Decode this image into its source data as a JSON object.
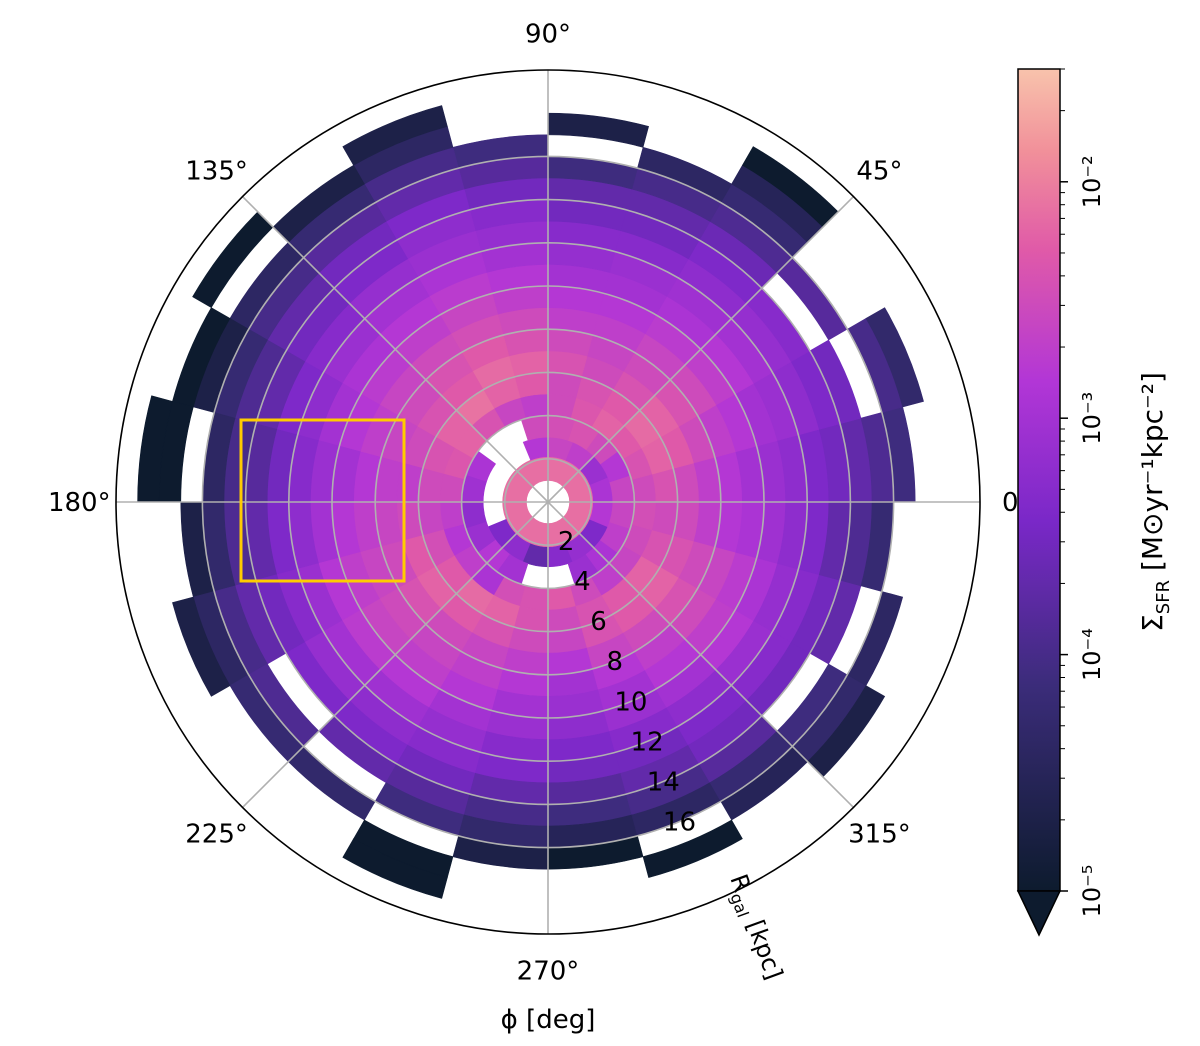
{
  "chart_data": {
    "type": "heatmap",
    "projection": "polar",
    "xlabel": "ϕ [deg]",
    "rlabel": "R_gal [kpc]",
    "rlabel_main": "R",
    "rlabel_sub": "gal",
    "rlabel_unit": " [kpc]",
    "theta_ticks": [
      "0°",
      "45°",
      "90°",
      "135°",
      "180°",
      "225°",
      "270°",
      "315°"
    ],
    "theta_tick_values": [
      0,
      45,
      90,
      135,
      180,
      225,
      270,
      315
    ],
    "r_ticks": [
      "2",
      "4",
      "6",
      "8",
      "10",
      "12",
      "14",
      "16"
    ],
    "r_tick_values": [
      2,
      4,
      6,
      8,
      10,
      12,
      14,
      16
    ],
    "rlim": [
      0,
      20
    ],
    "grid": true,
    "colorbar": {
      "label": "Σ_SFR [M⊙yr⁻¹kpc⁻²]",
      "label_sigma": "Σ",
      "label_sub": "SFR",
      "label_unit": " [M⊙yr⁻¹kpc⁻²]",
      "scale": "log",
      "range": [
        1e-05,
        0.03
      ],
      "extend": "min",
      "ticks": [
        "10⁻⁵",
        "10⁻⁴",
        "10⁻³",
        "10⁻²"
      ],
      "tick_values": [
        1e-05,
        0.0001,
        0.001,
        0.01
      ],
      "colormap": "magma-like (navy → purple → magenta → pink → peach)"
    },
    "rings": [
      {
        "r": [
          1.0,
          2.1
        ],
        "values": [
          0.0075,
          0.0075,
          0.0075,
          0.0075,
          0.0075,
          0.0075,
          0.0075,
          0.0075
        ]
      },
      {
        "r": [
          2.1,
          3.0
        ],
        "values": [
          0.0012,
          0.0008,
          0.002,
          0.0025,
          0.0015,
          null,
          null,
          null,
          null,
          0.0004,
          0.0006,
          0.0002,
          0.0005,
          0.0007,
          0.0004,
          0.0015
        ]
      },
      {
        "r": [
          3.0,
          4.0
        ],
        "values": [
          0.0025,
          0.0015,
          0.003,
          0.004,
          0.0035,
          0.003,
          null,
          null,
          0.0012,
          0.0009,
          0.0006,
          0.0008,
          0.0015,
          0.001,
          null,
          null,
          0.0008,
          0.0012,
          0.002,
          0.0025
        ]
      },
      {
        "r": [
          4.0,
          5.0
        ],
        "values": [
          0.003,
          0.004,
          0.005,
          0.006,
          0.0045,
          0.003,
          0.002,
          0.0025,
          0.004,
          0.006,
          0.0045,
          0.003,
          0.002,
          0.0015,
          0.002,
          0.0012,
          0.0035,
          0.004,
          0.005,
          0.003,
          0.002,
          0.0025,
          0.003,
          0.0035
        ]
      },
      {
        "r": [
          5.0,
          6.0
        ],
        "values": [
          0.004,
          0.006,
          0.007,
          0.005,
          0.004,
          0.003,
          0.005,
          0.006,
          0.008,
          0.006,
          0.004,
          0.003,
          0.0025,
          0.0035,
          0.005,
          0.007,
          0.006,
          0.004,
          0.003,
          0.004,
          0.005,
          0.006,
          0.004,
          0.003
        ]
      },
      {
        "r": [
          6.0,
          7.0
        ],
        "values": [
          0.003,
          0.005,
          0.006,
          0.004,
          0.003,
          0.004,
          0.006,
          0.007,
          0.005,
          0.004,
          0.003,
          0.002,
          0.003,
          0.005,
          0.006,
          0.005,
          0.004,
          0.003,
          0.0025,
          0.004,
          0.005,
          0.006,
          0.004,
          0.003
        ]
      },
      {
        "r": [
          7.0,
          8.0
        ],
        "values": [
          0.002,
          0.003,
          0.004,
          0.003,
          0.0025,
          0.003,
          0.004,
          0.005,
          0.004,
          0.003,
          0.0025,
          0.002,
          0.0025,
          0.003,
          0.004,
          0.003,
          0.0025,
          0.002,
          0.0015,
          0.0025,
          0.003,
          0.004,
          0.003,
          0.002
        ]
      },
      {
        "r": [
          8.0,
          9.0
        ],
        "values": [
          0.0015,
          0.002,
          0.003,
          0.0025,
          0.002,
          0.002,
          0.003,
          0.0035,
          0.003,
          0.0025,
          0.002,
          0.0015,
          0.002,
          0.0025,
          0.003,
          0.0025,
          0.002,
          0.0015,
          0.001,
          0.0015,
          0.002,
          0.003,
          0.0025,
          0.0015
        ]
      },
      {
        "r": [
          9.0,
          10.0
        ],
        "values": [
          0.001,
          0.0015,
          0.002,
          0.0018,
          0.0015,
          0.0015,
          0.002,
          0.0025,
          0.002,
          0.0018,
          0.0015,
          0.001,
          0.0015,
          0.002,
          0.0025,
          0.002,
          0.0015,
          0.001,
          0.0008,
          0.001,
          0.0015,
          0.002,
          0.0018,
          0.0012
        ]
      },
      {
        "r": [
          10.0,
          11.0
        ],
        "values": [
          0.0008,
          0.001,
          0.0015,
          0.0012,
          0.001,
          0.001,
          0.0015,
          0.0018,
          0.0015,
          0.0012,
          0.001,
          0.0008,
          0.001,
          0.0015,
          0.0018,
          0.0015,
          0.001,
          0.0008,
          0.0006,
          0.0008,
          0.001,
          0.0015,
          0.0012,
          0.0009
        ]
      },
      {
        "r": [
          11.0,
          12.0
        ],
        "values": [
          0.0006,
          0.0008,
          0.001,
          0.0009,
          0.0008,
          0.0007,
          0.001,
          0.0012,
          0.001,
          0.0008,
          0.0006,
          0.0005,
          0.0006,
          0.0008,
          0.001,
          0.0009,
          0.0007,
          0.0005,
          0.0004,
          0.0005,
          0.0006,
          0.0008,
          0.0007,
          0.0006
        ]
      },
      {
        "r": [
          12.0,
          13.0
        ],
        "values": [
          0.0004,
          0.0006,
          0.0007,
          0.0006,
          0.0005,
          0.0005,
          0.0007,
          0.0008,
          0.0007,
          0.0005,
          0.0004,
          0.0003,
          0.0004,
          0.0005,
          0.0007,
          0.0006,
          0.0005,
          0.0004,
          0.0003,
          0.0003,
          0.0004,
          0.0005,
          0.0005,
          0.0004
        ]
      },
      {
        "r": [
          13.0,
          14.0
        ],
        "values": [
          0.0003,
          0.0004,
          0.0005,
          0.0004,
          0.0003,
          0.0003,
          0.0005,
          0.0006,
          0.0004,
          0.0003,
          0.0002,
          0.00015,
          0.0002,
          0.0003,
          0.0004,
          0.0004,
          0.0003,
          0.0002,
          0.00015,
          0.0002,
          0.0003,
          0.0003,
          0.0003,
          0.0002
        ]
      },
      {
        "r": [
          14.0,
          15.0
        ],
        "values": [
          0.0002,
          0.0003,
          null,
          0.00025,
          0.0002,
          0.0002,
          0.0003,
          0.0004,
          0.0003,
          0.0002,
          0.00012,
          0.0001,
          0.00012,
          0.0002,
          null,
          0.0002,
          0.00015,
          0.0001,
          8e-05,
          0.0001,
          0.00015,
          null,
          0.0002,
          0.00012
        ]
      },
      {
        "r": [
          15.0,
          16.0
        ],
        "values": [
          0.00012,
          null,
          0.00015,
          0.00012,
          0.0001,
          8e-05,
          0.00015,
          0.0002,
          0.00015,
          0.0001,
          6e-05,
          4e-05,
          5e-05,
          0.0001,
          0.00012,
          null,
          8e-05,
          5e-05,
          3e-05,
          4e-05,
          6e-05,
          8e-05,
          null,
          6e-05
        ]
      },
      {
        "r": [
          16.0,
          17.0
        ],
        "values": [
          8e-05,
          0.0001,
          null,
          6e-05,
          4e-05,
          null,
          8e-05,
          0.0001,
          6e-05,
          4e-05,
          2e-05,
          null,
          2e-05,
          4e-05,
          6e-05,
          5e-05,
          null,
          2e-05,
          1e-05,
          null,
          3e-05,
          5e-05,
          4e-05,
          null
        ]
      },
      {
        "r": [
          17.0,
          18.0
        ],
        "values": [
          null,
          5e-05,
          null,
          3e-05,
          null,
          2e-05,
          null,
          4e-05,
          2e-05,
          null,
          1e-05,
          1e-05,
          null,
          2e-05,
          null,
          null,
          1e-05,
          null,
          null,
          1e-05,
          null,
          2e-05,
          null,
          null
        ]
      },
      {
        "r": [
          18.0,
          19.0
        ],
        "values": [
          null,
          null,
          null,
          1e-05,
          null,
          null,
          null,
          2e-05,
          null,
          1e-05,
          null,
          1e-05,
          null,
          null,
          null,
          null,
          1e-05,
          null,
          null,
          null,
          null,
          null,
          null,
          null
        ]
      }
    ],
    "highlight_box": {
      "color": "#ffcc00",
      "note": "rectangle over ϕ ≈ 168°–192°, R ≈ 7–14 kpc"
    }
  }
}
